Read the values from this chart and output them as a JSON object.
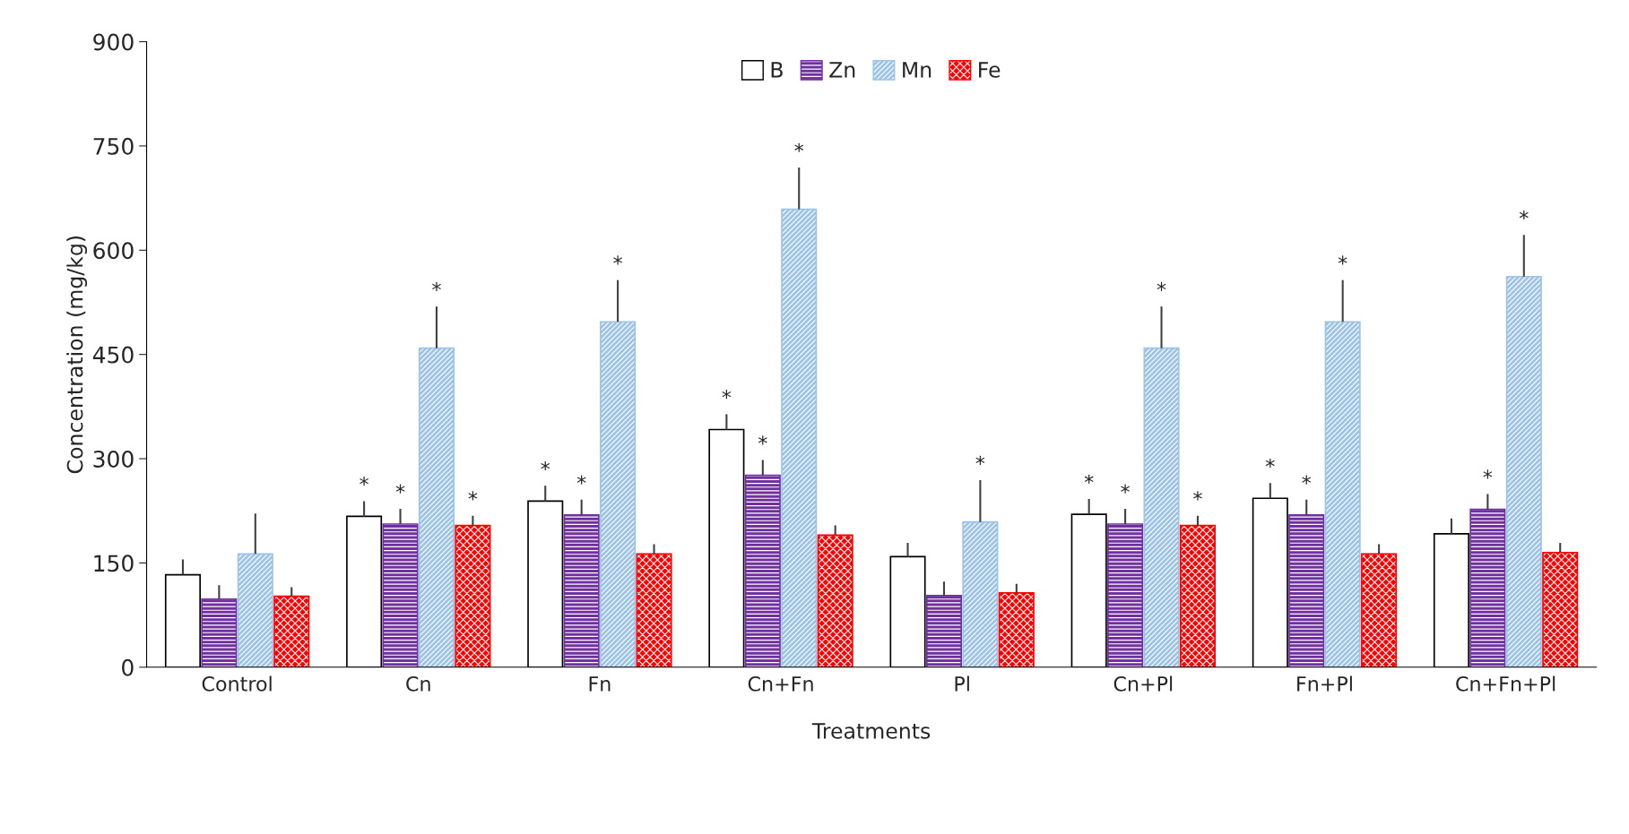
{
  "chart_data": {
    "type": "bar",
    "xlabel": "Treatments",
    "ylabel": "Concentration (mg/kg)",
    "categories": [
      "Control",
      "Cn",
      "Fn",
      "Cn+Fn",
      "Pl",
      "Cn+Pl",
      "Fn+Pl",
      "Cn+Fn+Pl"
    ],
    "ylim": [
      0,
      900
    ],
    "yticks": [
      0,
      150,
      300,
      450,
      600,
      750,
      900
    ],
    "grid": false,
    "legend": "top",
    "series": [
      {
        "name": "B",
        "color": "#ffffff",
        "values": [
          133,
          217,
          239,
          342,
          159,
          220,
          243,
          192
        ],
        "errors": [
          22,
          22,
          22,
          22,
          20,
          22,
          22,
          22
        ],
        "value_labels": [
          null,
          "*",
          "*",
          "*",
          null,
          "*",
          "*",
          null
        ]
      },
      {
        "name": "Zn",
        "color": "#7030a0",
        "values": [
          98,
          206,
          219,
          276,
          103,
          206,
          219,
          227
        ],
        "errors": [
          20,
          22,
          22,
          22,
          20,
          22,
          22,
          22
        ],
        "value_labels": [
          null,
          "*",
          "*",
          "*",
          null,
          "*",
          "*",
          "*"
        ]
      },
      {
        "name": "Mn",
        "color": "#9dc3e6",
        "values": [
          163,
          459,
          497,
          659,
          209,
          459,
          497,
          562
        ],
        "errors": [
          58,
          60,
          60,
          60,
          60,
          60,
          60,
          60
        ],
        "value_labels": [
          null,
          "*",
          "*",
          "*",
          "*",
          "*",
          "*",
          "*"
        ]
      },
      {
        "name": "Fe",
        "color": "#ff0000",
        "values": [
          102,
          204,
          163,
          190,
          107,
          204,
          163,
          165
        ],
        "errors": [
          13,
          14,
          14,
          14,
          13,
          14,
          14,
          14
        ],
        "value_labels": [
          null,
          "*",
          null,
          null,
          null,
          "*",
          null,
          null
        ]
      }
    ]
  }
}
